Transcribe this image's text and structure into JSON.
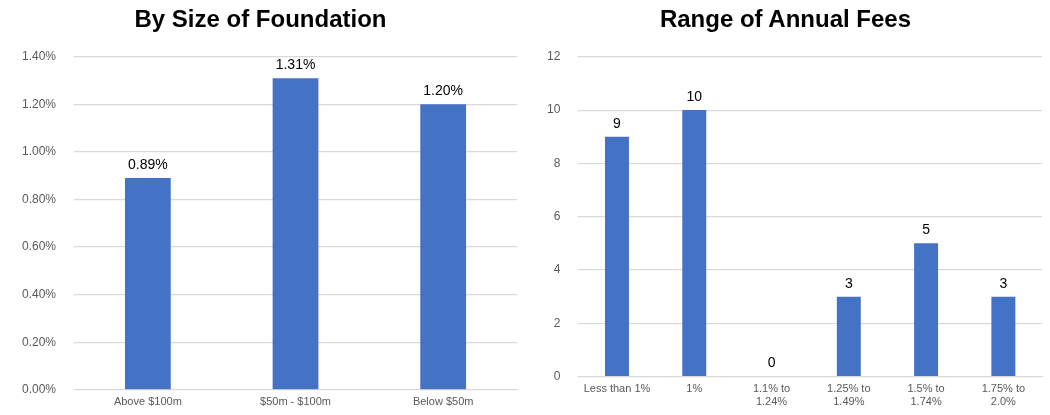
{
  "chart_data": [
    {
      "type": "bar",
      "title": "By Size of Foundation",
      "categories": [
        "Above $100m",
        "$50m - $100m",
        "Below $50m"
      ],
      "values": [
        0.89,
        1.31,
        1.2
      ],
      "value_labels": [
        "0.89%",
        "1.31%",
        "1.20%"
      ],
      "color": "#4472c4",
      "ylim": [
        0,
        1.4
      ],
      "yticks": [
        {
          "value": 0,
          "label": "0.00%"
        },
        {
          "value": 0.2,
          "label": "0.20%"
        },
        {
          "value": 0.4,
          "label": "0.40%"
        },
        {
          "value": 0.6,
          "label": "0.60%"
        },
        {
          "value": 0.8,
          "label": "0.80%"
        },
        {
          "value": 1,
          "label": "1.00%"
        },
        {
          "value": 1.2,
          "label": "1.20%"
        },
        {
          "value": 1.4,
          "label": "1.40%"
        }
      ],
      "grid": "y",
      "legend": false
    },
    {
      "type": "bar",
      "title": "Range of Annual Fees",
      "categories": [
        "Less than 1%",
        "1%",
        "1.1% to 1.24%",
        "1.25% to 1.49%",
        "1.5% to 1.74%",
        "1.75% to 2.0%"
      ],
      "values": [
        9,
        10,
        0,
        3,
        5,
        3
      ],
      "data_labels": true,
      "color": "#4472c4",
      "ylim": [
        0,
        12
      ],
      "yticks": [
        0,
        2,
        4,
        6,
        8,
        10,
        12
      ],
      "grid": "y",
      "legend": false
    }
  ]
}
